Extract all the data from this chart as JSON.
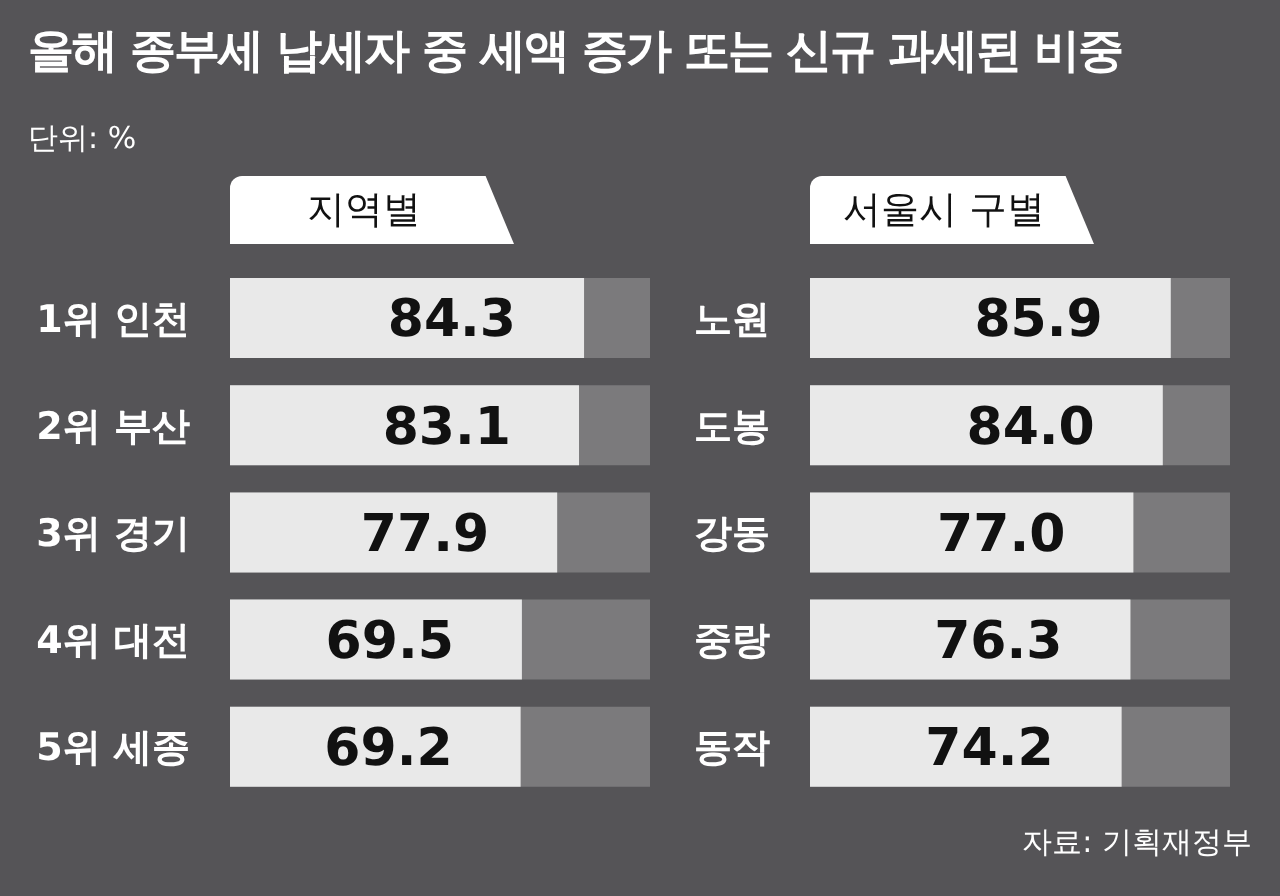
{
  "chart_data": [
    {
      "type": "bar",
      "orientation": "horizontal",
      "title": "올해 종부세 납세자 중 세액 증가 또는 신규 과세된 비중",
      "subtitle": "지역별",
      "annotations": [
        "단위: %"
      ],
      "categories": [
        "1위 인천",
        "2위 부산",
        "3위 경기",
        "4위 대전",
        "5위 세종"
      ],
      "values": [
        84.3,
        83.1,
        77.9,
        69.5,
        69.2
      ],
      "color": "#e9e9e9",
      "xlim": [
        0,
        100
      ],
      "data_labels": true,
      "tick_labels": "y"
    },
    {
      "type": "bar",
      "orientation": "horizontal",
      "title": "서울시 구별",
      "annotations": [
        "자료: 기획재정부"
      ],
      "categories": [
        "노원",
        "도봉",
        "강동",
        "중랑",
        "동작"
      ],
      "values": [
        85.9,
        84.0,
        77.0,
        76.3,
        74.2
      ],
      "value_labels": [
        "85.9",
        "84.0",
        "77.0",
        "76.3",
        "74.2"
      ],
      "color": "#e9e9e9",
      "xlim": [
        0,
        100
      ],
      "tick_labels": "y"
    }
  ]
}
